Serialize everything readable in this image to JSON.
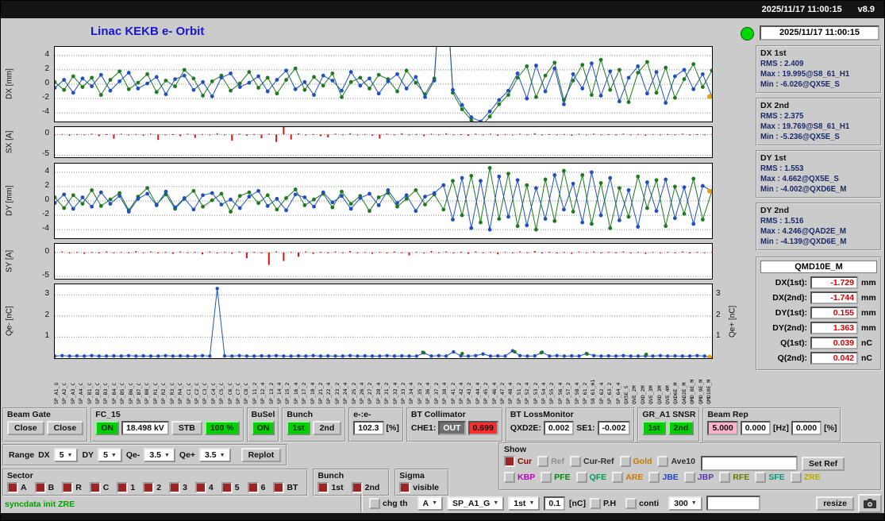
{
  "titlebar": {
    "clock": "2025/11/17 11:00:15",
    "version": "v8.9"
  },
  "header": {
    "title": "Linac KEKB e- Orbit",
    "timestamp": "2025/11/17 11:00:15"
  },
  "stats": [
    {
      "title": "DX 1st",
      "lines": [
        "RMS : 2.409",
        "Max : 19.995@S8_61_H1",
        "Min : -6.026@QX5E_S"
      ]
    },
    {
      "title": "DX 2nd",
      "lines": [
        "RMS : 2.375",
        "Max : 19.769@S8_61_H1",
        "Min : -5.236@QX5E_S"
      ]
    },
    {
      "title": "DY 1st",
      "lines": [
        "RMS : 1.553",
        "Max : 4.662@QX5E_S",
        "Min : -4.002@QXD6E_M"
      ]
    },
    {
      "title": "DY 2nd",
      "lines": [
        "RMS : 1.516",
        "Max : 4.246@QAD2E_M",
        "Min : -4.139@QXD6E_M"
      ]
    }
  ],
  "monitor": {
    "name": "QMD10E_M",
    "rows": [
      {
        "label": "DX(1st):",
        "value": "-1.729",
        "unit": "mm"
      },
      {
        "label": "DX(2nd):",
        "value": "-1.744",
        "unit": "mm"
      },
      {
        "label": "DY(1st):",
        "value": "0.155",
        "unit": "mm"
      },
      {
        "label": "DY(2nd):",
        "value": "1.363",
        "unit": "mm"
      },
      {
        "label": "Q(1st):",
        "value": "0.039",
        "unit": "nC"
      },
      {
        "label": "Q(2nd):",
        "value": "0.042",
        "unit": "nC"
      }
    ]
  },
  "colors": {
    "gold": "#f0a000",
    "green": "#1f7a1f",
    "blue": "#2050c0",
    "red": "#dd1111"
  },
  "chart_data": [
    {
      "id": "dx",
      "type": "scatter",
      "ylabel": "DX [mm]",
      "ylim": [
        -5.2,
        5.2
      ],
      "yticks": [
        {
          "v": 4,
          "label": "4"
        },
        {
          "v": 2,
          "label": "2"
        },
        {
          "v": 0,
          "label": "0"
        },
        {
          "v": -2,
          "label": "-2"
        },
        {
          "v": -4,
          "label": "-4"
        }
      ],
      "series": [
        {
          "name": "1st bunch",
          "color": "#1f7a1f",
          "values": [
            0.3,
            -0.8,
            1.1,
            -0.4,
            0.9,
            -1.5,
            0.6,
            1.8,
            -0.7,
            0.2,
            1.4,
            -1.1,
            0.5,
            -0.3,
            2.0,
            0.8,
            -1.6,
            0.4,
            1.2,
            -0.9,
            0.1,
            1.7,
            -0.5,
            0.9,
            -1.3,
            0.6,
            2.2,
            -0.8,
            1.0,
            -0.2,
            1.5,
            -1.8,
            0.3,
            0.9,
            -0.6,
            1.3,
            0.7,
            -1.0,
            1.9,
            0.2,
            -1.4,
            0.8,
            20.0,
            -1.2,
            -3.5,
            -5.0,
            -6.0,
            -4.5,
            -2.8,
            -1.5,
            0.9,
            2.5,
            -1.8,
            1.2,
            3.0,
            -2.2,
            0.5,
            2.7,
            -1.5,
            3.4,
            -0.8,
            2.0,
            -2.5,
            1.6,
            3.1,
            -1.2,
            2.3,
            -1.9,
            0.7,
            2.8,
            -0.4,
            1.9
          ]
        },
        {
          "name": "2nd bunch",
          "color": "#2050c0",
          "values": [
            -0.5,
            0.6,
            -1.2,
            0.8,
            -0.3,
            1.3,
            -0.9,
            0.4,
            1.6,
            -0.6,
            0.1,
            1.0,
            -1.4,
            0.7,
            1.2,
            -0.8,
            0.3,
            -1.7,
            0.9,
            1.5,
            -0.4,
            0.2,
            1.1,
            -1.0,
            0.6,
            1.9,
            -0.7,
            0.3,
            -1.5,
            1.2,
            0.5,
            -0.9,
            1.7,
            -0.2,
            0.8,
            -1.3,
            0.4,
            1.4,
            -0.6,
            1.0,
            -1.8,
            0.5,
            19.8,
            -0.8,
            -2.9,
            -4.6,
            -5.2,
            -3.8,
            -2.2,
            -0.9,
            1.5,
            -2.0,
            2.6,
            -1.0,
            2.2,
            -2.8,
            1.4,
            -0.6,
            2.9,
            -1.6,
            1.8,
            -2.4,
            0.9,
            2.5,
            -1.3,
            1.7,
            -2.6,
            1.1,
            2.0,
            -0.7,
            1.4,
            -1.73
          ]
        }
      ],
      "gold_point": {
        "x": 1,
        "y": -1.73
      }
    },
    {
      "id": "sx",
      "type": "bars",
      "ylabel": "SX [A]",
      "ylim": [
        -5.5,
        1.8
      ],
      "color": "#dd1111",
      "yticks": [
        {
          "v": 0,
          "label": "0"
        },
        {
          "v": -5,
          "label": "-5"
        }
      ],
      "values": [
        -0.2,
        0.1,
        -0.3,
        0.1,
        -0.1,
        0.2,
        -0.4,
        0.1,
        -1.0,
        0.2,
        -0.2,
        0.1,
        -0.3,
        0.2,
        -1.3,
        -0.2,
        0.1,
        -0.4,
        0.2,
        -0.8,
        0.1,
        -0.2,
        0.3,
        -0.1,
        -1.5,
        0.2,
        -0.3,
        0.1,
        -0.9,
        0.2,
        -1.8,
        2.0,
        -1.2,
        0.3,
        -0.2,
        0.1,
        -0.4,
        -0.7,
        0.2,
        -0.1,
        0.3,
        -0.2,
        0.1,
        -0.3,
        -1.0,
        0.2,
        -0.1,
        0.3,
        -0.2,
        0.1,
        -0.4,
        0.2,
        -0.1,
        0.3,
        -0.2,
        0.1,
        -0.3,
        0.2,
        -0.1,
        0.2,
        -0.3,
        0.1,
        -0.2,
        0.2,
        -0.1,
        0.3,
        -0.2,
        0.1,
        -0.2,
        0.1,
        -0.3,
        0.2,
        -0.1,
        0.2,
        -0.2,
        0.1,
        -0.1,
        0.2,
        -0.2,
        0.1,
        -0.3,
        0.1,
        -0.2,
        0.1,
        -0.1,
        0.2,
        -0.2,
        0.1,
        -0.1,
        0.1
      ]
    },
    {
      "id": "dy",
      "type": "scatter",
      "ylabel": "DY [mm]",
      "ylim": [
        -5.2,
        5.2
      ],
      "yticks": [
        {
          "v": 4,
          "label": "4"
        },
        {
          "v": 2,
          "label": "2"
        },
        {
          "v": 0,
          "label": "0"
        },
        {
          "v": -2,
          "label": "-2"
        },
        {
          "v": -4,
          "label": "-4"
        }
      ],
      "series": [
        {
          "name": "1st bunch",
          "color": "#1f7a1f",
          "values": [
            0.5,
            -1.0,
            0.8,
            -0.4,
            1.5,
            -0.7,
            0.2,
            1.1,
            -1.3,
            0.6,
            1.8,
            -0.5,
            0.9,
            -1.1,
            0.3,
            1.4,
            -0.8,
            0.1,
            1.0,
            -1.5,
            0.7,
            1.2,
            -0.3,
            0.8,
            -1.2,
            0.4,
            1.6,
            -0.6,
            0.2,
            1.0,
            -0.9,
            1.3,
            -0.4,
            0.7,
            -1.4,
            0.5,
            1.1,
            -0.8,
            0.3,
            1.5,
            -0.5,
            0.9,
            -1.2,
            2.8,
            -2.0,
            3.5,
            -3.0,
            4.6,
            -2.5,
            3.8,
            -3.5,
            2.2,
            -4.0,
            3.0,
            -2.8,
            4.2,
            -1.5,
            3.6,
            -3.2,
            2.5,
            -3.8,
            1.8,
            -2.2,
            3.4,
            -1.0,
            2.9,
            -3.5,
            2.0,
            -1.8,
            3.1,
            -2.6,
            1.4
          ]
        },
        {
          "name": "2nd bunch",
          "color": "#2050c0",
          "values": [
            -0.3,
            0.9,
            -1.1,
            0.5,
            -0.8,
            1.2,
            -0.4,
            0.7,
            -1.5,
            0.3,
            1.0,
            -0.6,
            1.3,
            -0.9,
            0.4,
            -1.2,
            0.8,
            1.1,
            -0.5,
            0.2,
            -1.0,
            0.6,
            1.4,
            -0.7,
            0.3,
            -1.3,
            0.9,
            0.5,
            -0.8,
            1.2,
            -0.2,
            0.7,
            -1.1,
            0.4,
            1.0,
            -0.6,
            1.5,
            -0.3,
            0.8,
            -1.4,
            0.6,
            1.1,
            2.2,
            -2.6,
            3.2,
            -3.8,
            2.8,
            -4.0,
            3.4,
            -2.2,
            2.9,
            -3.4,
            1.8,
            -2.5,
            3.6,
            -1.2,
            2.4,
            -3.0,
            4.0,
            -2.0,
            3.2,
            -2.7,
            1.5,
            -3.6,
            2.6,
            -1.4,
            3.0,
            -2.4,
            1.9,
            -3.2,
            2.1,
            1.36
          ]
        }
      ],
      "gold_point": {
        "x": 1,
        "y": 1.36
      }
    },
    {
      "id": "sy",
      "type": "bars",
      "ylabel": "SY [A]",
      "ylim": [
        -5.5,
        1.8
      ],
      "color": "#dd1111",
      "yticks": [
        {
          "v": 0,
          "label": "0"
        },
        {
          "v": -5,
          "label": "-5"
        }
      ],
      "values": [
        -0.1,
        0.2,
        -0.2,
        0.1,
        -0.3,
        0.1,
        -0.2,
        0.2,
        -0.1,
        0.1,
        -0.2,
        0.3,
        -0.1,
        0.2,
        -0.2,
        0.1,
        -0.3,
        0.2,
        -0.1,
        0.1,
        -0.4,
        0.2,
        -0.2,
        0.1,
        -0.3,
        0.2,
        -1.2,
        0.1,
        -0.2,
        -2.6,
        0.2,
        -1.8,
        0.1,
        -0.9,
        0.2,
        -0.3,
        0.1,
        -0.2,
        0.2,
        -0.1,
        0.3,
        -0.2,
        0.1,
        -0.3,
        0.1,
        -0.2,
        0.2,
        -0.1,
        -0.6,
        0.1,
        -0.2,
        0.3,
        -0.1,
        0.2,
        -0.2,
        0.1,
        -0.3,
        0.2,
        -0.1,
        0.1,
        -0.4,
        0.1,
        -0.2,
        0.2,
        -0.1,
        0.3,
        -0.2,
        0.1,
        -0.2,
        0.1,
        -0.3,
        0.2,
        -0.1,
        0.2,
        -0.2,
        0.1,
        -0.1,
        0.2,
        -0.2,
        0.1,
        -0.3,
        0.1,
        -0.2,
        0.1,
        -0.1,
        0.2,
        -0.2,
        0.1,
        -0.1,
        0.1
      ]
    },
    {
      "id": "q",
      "type": "scatter",
      "ylabel": "Qe- [nC]",
      "right_label": "Qe+ [nC]",
      "ylim": [
        0,
        3.5
      ],
      "dot_r": 2.2,
      "yticks": [
        {
          "v": 1,
          "label": "1"
        },
        {
          "v": 2,
          "label": "2"
        },
        {
          "v": 3,
          "label": "3"
        }
      ],
      "right_ticks": [
        {
          "v": 1,
          "label": "1"
        },
        {
          "v": 2,
          "label": "2"
        },
        {
          "v": 3,
          "label": "3"
        }
      ],
      "series": [
        {
          "name": "e- 2nd",
          "color": "#2050c0",
          "values": [
            0.1,
            0.12,
            0.1,
            0.11,
            0.1,
            0.12,
            0.1,
            0.1,
            0.11,
            0.1,
            0.12,
            0.1,
            0.11,
            0.1,
            0.1,
            0.12,
            0.1,
            0.11,
            0.1,
            0.1,
            0.12,
            0.1,
            3.3,
            0.11,
            0.1,
            0.12,
            0.1,
            0.1,
            0.11,
            0.1,
            0.12,
            0.1,
            0.1,
            0.11,
            0.1,
            0.12,
            0.1,
            0.11,
            0.1,
            0.1,
            0.12,
            0.1,
            0.11,
            0.1,
            0.1,
            0.12,
            0.1,
            0.11,
            0.1,
            0.1,
            0.25,
            0.1,
            0.12,
            0.1,
            0.3,
            0.11,
            0.1,
            0.12,
            0.2,
            0.1,
            0.11,
            0.1,
            0.35,
            0.12,
            0.1,
            0.11,
            0.28,
            0.1,
            0.12,
            0.1,
            0.11,
            0.1,
            0.22,
            0.12,
            0.1,
            0.11,
            0.1,
            0.12,
            0.1,
            0.1,
            0.11,
            0.1,
            0.12,
            0.1,
            0.11,
            0.1,
            0.1,
            0.12,
            0.1,
            0.04
          ]
        },
        {
          "name": "e- 1st",
          "color": "#1f7a1f",
          "line": false,
          "x": [
            0.56,
            0.62,
            0.7,
            0.74,
            0.81,
            0.9
          ],
          "y": [
            0.28,
            0.22,
            0.3,
            0.26,
            0.2,
            0.18
          ]
        }
      ],
      "gold_point": {
        "x": 1,
        "y": 0.05
      }
    }
  ],
  "xaxis": {
    "labels": [
      "SP_A1_G",
      "SP_A2_C",
      "SP_A3_C",
      "SP_A4_C",
      "SP_B1_C",
      "SP_B2_C",
      "SP_B3_C",
      "SP_B4_C",
      "SP_B5_C",
      "SP_B6_C",
      "SP_B7_C",
      "SP_B8_C",
      "SP_R1_C",
      "SP_R2_C",
      "SP_R3_C",
      "SP_R4_C",
      "SP_C1_C",
      "SP_C2_C",
      "SP_C3_C",
      "SP_C4_C",
      "SP_C5_C",
      "SP_C6_C",
      "SP_C7_C",
      "SP_C8_C",
      "SP_11_2",
      "SP_12_4",
      "SP_13_2",
      "SP_14_4",
      "SP_15_2",
      "SP_16_4",
      "SP_17_2",
      "SP_18_4",
      "SP_21_2",
      "SP_22_4",
      "SP_23_2",
      "SP_24_4",
      "SP_25_2",
      "SP_26_4",
      "SP_27_2",
      "SP_28_4",
      "SP_31_2",
      "SP_32_4",
      "SP_33_2",
      "SP_34_4",
      "SP_35_2",
      "SP_36_4",
      "SP_37_2",
      "SP_38_4",
      "SP_41_2",
      "SP_42_4",
      "SP_43_2",
      "SP_44_4",
      "SP_45_2",
      "SP_46_4",
      "SP_47_2",
      "SP_48_4",
      "SP_51_2",
      "SP_52_4",
      "SP_53_2",
      "SP_54_4",
      "SP_55_2",
      "SP_56_4",
      "SP_57_2",
      "SP_58_4",
      "SP_61_2",
      "S8_61_H1",
      "SP_62_4",
      "SP_63_2",
      "SP_64_4",
      "QX5E_S",
      "QVE_2M",
      "QXD_2M",
      "QVE_3M",
      "QXD_3M",
      "QVE_4M",
      "QXD6E_M",
      "QAD2E_M",
      "QMD_8E_M",
      "QMD_9E_M",
      "QMD10E_M"
    ]
  },
  "controls": {
    "beam_gate": {
      "title": "Beam Gate",
      "close1": "Close",
      "close2": "Close"
    },
    "fc15": {
      "title": "FC_15",
      "on": "ON",
      "kv": "18.498 kV",
      "stb": "STB",
      "duty": "100 %"
    },
    "busel": {
      "title": "BuSel",
      "on": "ON"
    },
    "bunch": {
      "title": "Bunch",
      "first": "1st",
      "second": "2nd"
    },
    "ee": {
      "title": "e-:e-",
      "value": "102.3",
      "unit": "[%]"
    },
    "bt_collimator": {
      "title": "BT Collimator",
      "che1_label": "CHE1:",
      "che1_state": "OUT",
      "che1_value": "0.699"
    },
    "bt_loss": {
      "title": "BT LossMonitor",
      "qxd2e_label": "QXD2E:",
      "qxd2e_value": "0.002",
      "se1_label": "SE1:",
      "se1_value": "-0.002"
    },
    "gr_a1": {
      "title": "GR_A1 SNSR",
      "first": "1st",
      "second": "2nd"
    },
    "beam_rep": {
      "title": "Beam Rep",
      "v1": "5.000",
      "v2": "0.000",
      "hz": "[Hz]",
      "v3": "0.000",
      "pct": "[%]"
    },
    "range": {
      "label": "Range",
      "dx_label": "DX",
      "dx": "5",
      "dy_label": "DY",
      "dy": "5",
      "qem_label": "Qe-",
      "qem": "3.5",
      "qep_label": "Qe+",
      "qep": "3.5",
      "replot": "Replot"
    },
    "show": {
      "title": "Show",
      "row1": [
        {
          "label": "Cur",
          "color": "#8b0000",
          "checked": true
        },
        {
          "label": "Ref",
          "color": "#909090",
          "checked": false
        },
        {
          "label": "Cur-Ref",
          "color": "#303030",
          "checked": false
        },
        {
          "label": "Gold",
          "color": "#c07800",
          "checked": false
        },
        {
          "label": "Ave10",
          "color": "#303030",
          "checked": false
        }
      ],
      "ref_input": "",
      "set_ref": "Set Ref",
      "row2": [
        {
          "label": "KBP",
          "color": "#bb00bb"
        },
        {
          "label": "PFE",
          "color": "#008800"
        },
        {
          "label": "QFE",
          "color": "#009955"
        },
        {
          "label": "ARE",
          "color": "#cc7700"
        },
        {
          "label": "JBE",
          "color": "#2244cc"
        },
        {
          "label": "JBP",
          "color": "#5533bb"
        },
        {
          "label": "RFE",
          "color": "#667700"
        },
        {
          "label": "SFE",
          "color": "#009977"
        },
        {
          "label": "ZRE",
          "color": "#bbaa00"
        }
      ]
    },
    "sector": {
      "title": "Sector",
      "items": [
        {
          "label": "A",
          "checked": true
        },
        {
          "label": "B",
          "checked": true
        },
        {
          "label": "R",
          "checked": true
        },
        {
          "label": "C",
          "checked": true
        },
        {
          "label": "1",
          "checked": true
        },
        {
          "label": "2",
          "checked": true
        },
        {
          "label": "3",
          "checked": true
        },
        {
          "label": "4",
          "checked": true
        },
        {
          "label": "5",
          "checked": true
        },
        {
          "label": "6",
          "checked": true
        },
        {
          "label": "BT",
          "checked": true
        }
      ]
    },
    "bunch2": {
      "title": "Bunch",
      "items": [
        {
          "label": "1st",
          "checked": true
        },
        {
          "label": "2nd",
          "checked": true
        }
      ]
    },
    "sigma": {
      "title": "Sigma",
      "items": [
        {
          "label": "visible",
          "checked": true
        }
      ]
    },
    "bottom": {
      "status": "syncdata init ZRE",
      "chg_th": "chg th",
      "mode": "A",
      "monitor_select": "SP_A1_G",
      "bunch_select": "1st",
      "threshold": "0.1",
      "threshold_unit": "[nC]",
      "ph": "P.H",
      "conti": "conti",
      "points": "300",
      "free_input": "",
      "resize": "resize"
    }
  }
}
